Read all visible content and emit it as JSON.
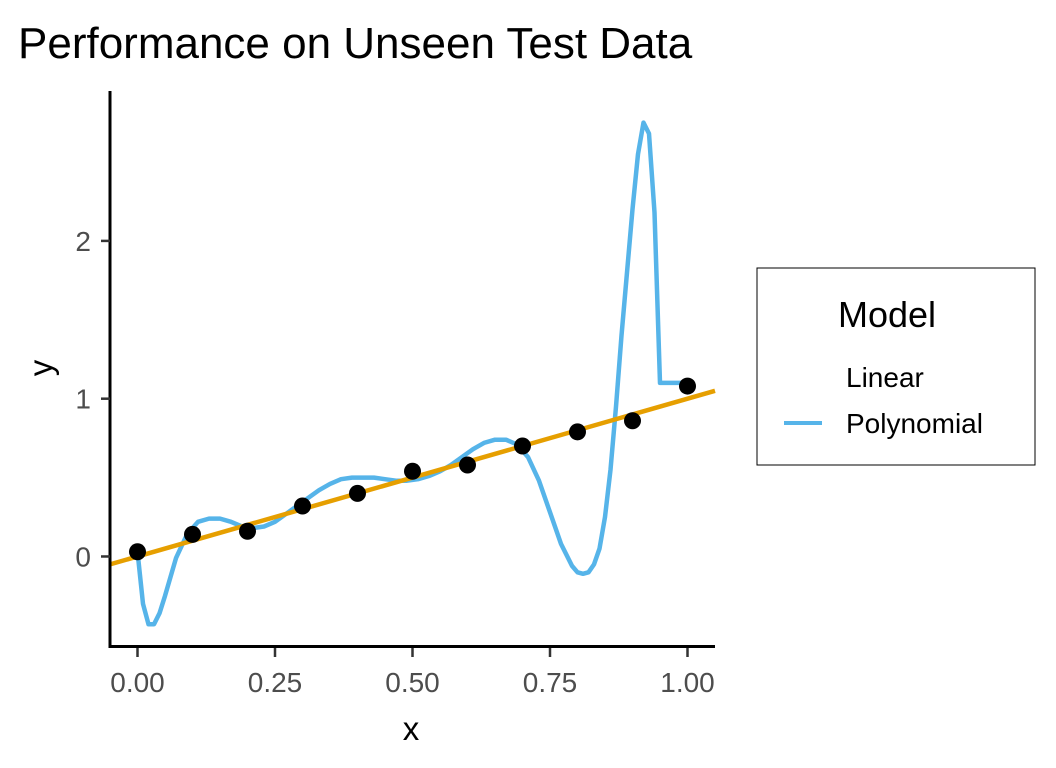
{
  "chart_data": {
    "type": "line",
    "title": "Performance on Unseen Test Data",
    "xlabel": "x",
    "ylabel": "y",
    "xlim": [
      -0.05,
      1.05
    ],
    "ylim": [
      -0.58,
      2.95
    ],
    "x_ticks": [
      0,
      0.25,
      0.5,
      0.75,
      1
    ],
    "x_tick_labels": [
      "0.00",
      "0.25",
      "0.50",
      "0.75",
      "1.00"
    ],
    "y_ticks": [
      0,
      1,
      2
    ],
    "y_tick_labels": [
      "0",
      "1",
      "2"
    ],
    "grid": false,
    "legend": {
      "title": "Model",
      "position": "right",
      "entries": [
        "Linear",
        "Polynomial"
      ]
    },
    "points": {
      "x": [
        0.0,
        0.1,
        0.2,
        0.3,
        0.4,
        0.5,
        0.6,
        0.7,
        0.8,
        0.9,
        1.0
      ],
      "y": [
        0.03,
        0.14,
        0.16,
        0.32,
        0.4,
        0.54,
        0.58,
        0.7,
        0.79,
        0.86,
        1.08
      ]
    },
    "series": [
      {
        "name": "Linear",
        "color": "#E69F00",
        "x": [
          -0.05,
          1.05
        ],
        "y": [
          -0.05,
          1.05
        ]
      },
      {
        "name": "Polynomial",
        "color": "#56B4E9",
        "x": [
          0.0,
          0.01,
          0.02,
          0.03,
          0.04,
          0.05,
          0.07,
          0.09,
          0.11,
          0.13,
          0.15,
          0.17,
          0.19,
          0.21,
          0.23,
          0.25,
          0.27,
          0.29,
          0.31,
          0.33,
          0.35,
          0.37,
          0.39,
          0.41,
          0.43,
          0.45,
          0.47,
          0.49,
          0.51,
          0.53,
          0.55,
          0.57,
          0.59,
          0.61,
          0.63,
          0.65,
          0.67,
          0.69,
          0.71,
          0.73,
          0.75,
          0.77,
          0.79,
          0.8,
          0.81,
          0.82,
          0.83,
          0.84,
          0.85,
          0.86,
          0.87,
          0.88,
          0.89,
          0.9,
          0.91,
          0.92,
          0.93,
          0.94,
          0.95,
          0.96,
          0.97,
          0.98,
          0.99,
          1.0
        ],
        "y": [
          0.03,
          -0.3,
          -0.43,
          -0.43,
          -0.36,
          -0.25,
          -0.01,
          0.14,
          0.22,
          0.24,
          0.24,
          0.22,
          0.19,
          0.18,
          0.19,
          0.22,
          0.27,
          0.32,
          0.37,
          0.42,
          0.46,
          0.49,
          0.5,
          0.5,
          0.5,
          0.49,
          0.48,
          0.48,
          0.49,
          0.51,
          0.54,
          0.58,
          0.63,
          0.68,
          0.72,
          0.74,
          0.74,
          0.71,
          0.63,
          0.48,
          0.28,
          0.08,
          -0.06,
          -0.1,
          -0.11,
          -0.1,
          -0.05,
          0.05,
          0.25,
          0.55,
          0.95,
          1.4,
          1.8,
          2.2,
          2.55,
          2.75,
          2.68,
          2.18,
          1.1,
          1.1,
          1.1,
          1.1,
          1.1,
          1.1
        ]
      }
    ]
  }
}
